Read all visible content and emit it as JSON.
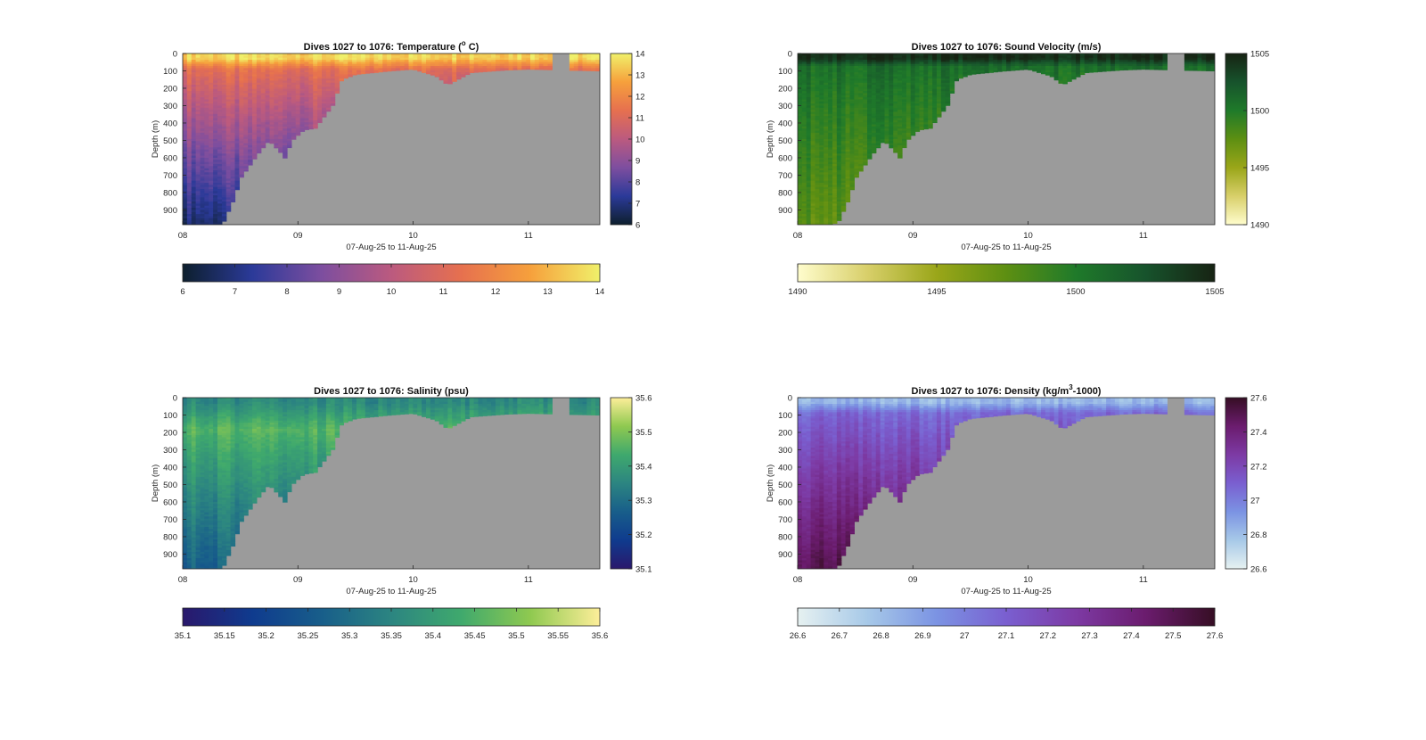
{
  "figure": {
    "background": "#ffffff"
  },
  "chart_data": [
    {
      "type": "heatmap",
      "title": "Dives 1027 to 1076: Temperature (°C)",
      "title_parts": [
        "Dives 1027 to 1076: Temperature (",
        "o",
        " C)"
      ],
      "xlabel": "07-Aug-25 to 11-Aug-25",
      "ylabel": "Depth (m)",
      "xlim": [
        8.0,
        11.62
      ],
      "ylim": [
        0,
        985
      ],
      "x_ticks": [
        8,
        9,
        10,
        11
      ],
      "x_tick_labels": [
        "08",
        "09",
        "10",
        "11"
      ],
      "y_ticks": [
        0,
        100,
        200,
        300,
        400,
        500,
        600,
        700,
        800,
        900
      ],
      "y_tick_labels": [
        "0",
        "100",
        "200",
        "300",
        "400",
        "500",
        "600",
        "700",
        "800",
        "900"
      ],
      "colormap": "thermal",
      "colormap_stops": [
        "#0d1f2d",
        "#2b3a99",
        "#7d4e9f",
        "#bb5a7f",
        "#e6704f",
        "#f6a03c",
        "#f0f06a"
      ],
      "clim": [
        6,
        14
      ],
      "side_colorbar_ticks": [
        "6",
        "7",
        "8",
        "9",
        "10",
        "11",
        "12",
        "13",
        "14"
      ],
      "bottom_colorbar_ticks": [
        "6",
        "7",
        "8",
        "9",
        "10",
        "11",
        "12",
        "13",
        "14"
      ],
      "surface_value": 13.6,
      "mixed_layer_value": 11.3,
      "mixed_layer_depth": 85,
      "deep_value": 6.8,
      "max_depth_by_day": [
        [
          8.0,
          985
        ],
        [
          8.35,
          985
        ],
        [
          8.36,
          960
        ],
        [
          8.45,
          830
        ],
        [
          8.5,
          720
        ],
        [
          8.65,
          580
        ],
        [
          8.75,
          500
        ],
        [
          8.85,
          570
        ],
        [
          8.88,
          610
        ],
        [
          8.95,
          500
        ],
        [
          9.05,
          440
        ],
        [
          9.15,
          430
        ],
        [
          9.3,
          300
        ],
        [
          9.38,
          150
        ],
        [
          9.5,
          120
        ],
        [
          9.8,
          100
        ],
        [
          10.0,
          90
        ],
        [
          10.2,
          130
        ],
        [
          10.3,
          180
        ],
        [
          10.5,
          110
        ],
        [
          10.8,
          95
        ],
        [
          11.0,
          90
        ],
        [
          11.62,
          100
        ]
      ],
      "gaps": [
        [
          11.2,
          11.35
        ]
      ]
    },
    {
      "type": "heatmap",
      "title": "Dives 1027 to 1076: Sound Velocity (m/s)",
      "xlabel": "07-Aug-25 to 11-Aug-25",
      "ylabel": "Depth (m)",
      "xlim": [
        8.0,
        11.62
      ],
      "ylim": [
        0,
        985
      ],
      "x_ticks": [
        8,
        9,
        10,
        11
      ],
      "x_tick_labels": [
        "08",
        "09",
        "10",
        "11"
      ],
      "y_ticks": [
        0,
        100,
        200,
        300,
        400,
        500,
        600,
        700,
        800,
        900
      ],
      "y_tick_labels": [
        "0",
        "100",
        "200",
        "300",
        "400",
        "500",
        "600",
        "700",
        "800",
        "900"
      ],
      "colormap": "speed",
      "colormap_stops": [
        "#fffdcd",
        "#d8cf6a",
        "#9aa619",
        "#5d8f12",
        "#1f7a2a",
        "#17532c",
        "#172313"
      ],
      "clim": [
        1490,
        1505
      ],
      "side_colorbar_ticks": [
        "1490",
        "1495",
        "1500",
        "1505"
      ],
      "bottom_colorbar_ticks": [
        "1490",
        "1495",
        "1500",
        "1505"
      ],
      "surface_value": 1504.5,
      "mixed_layer_value": 1500.8,
      "mixed_layer_depth": 70,
      "deep_value": 1497.5,
      "max_depth_by_day": [
        [
          8.0,
          985
        ],
        [
          8.3,
          985
        ],
        [
          8.36,
          960
        ],
        [
          8.45,
          830
        ],
        [
          8.5,
          720
        ],
        [
          8.65,
          580
        ],
        [
          8.75,
          500
        ],
        [
          8.85,
          570
        ],
        [
          8.88,
          610
        ],
        [
          8.95,
          500
        ],
        [
          9.05,
          440
        ],
        [
          9.15,
          430
        ],
        [
          9.3,
          300
        ],
        [
          9.38,
          150
        ],
        [
          9.5,
          120
        ],
        [
          9.8,
          100
        ],
        [
          10.0,
          90
        ],
        [
          10.2,
          130
        ],
        [
          10.3,
          180
        ],
        [
          10.5,
          110
        ],
        [
          10.8,
          95
        ],
        [
          11.0,
          90
        ],
        [
          11.62,
          100
        ]
      ],
      "gaps": [
        [
          11.2,
          11.35
        ]
      ]
    },
    {
      "type": "heatmap",
      "title": "Dives 1027 to 1076: Salinity (psu)",
      "xlabel": "07-Aug-25 to 11-Aug-25",
      "ylabel": "Depth (m)",
      "xlim": [
        8.0,
        11.62
      ],
      "ylim": [
        0,
        985
      ],
      "x_ticks": [
        8,
        9,
        10,
        11
      ],
      "x_tick_labels": [
        "08",
        "09",
        "10",
        "11"
      ],
      "y_ticks": [
        0,
        100,
        200,
        300,
        400,
        500,
        600,
        700,
        800,
        900
      ],
      "y_tick_labels": [
        "0",
        "100",
        "200",
        "300",
        "400",
        "500",
        "600",
        "700",
        "800",
        "900"
      ],
      "colormap": "haline",
      "colormap_stops": [
        "#2a186c",
        "#0f3b8e",
        "#185e8a",
        "#2c8581",
        "#3fa96d",
        "#8fc950",
        "#fdee99"
      ],
      "clim": [
        35.1,
        35.6
      ],
      "side_colorbar_ticks": [
        "35.1",
        "35.2",
        "35.3",
        "35.4",
        "35.5",
        "35.6"
      ],
      "bottom_colorbar_ticks": [
        "35.1",
        "35.15",
        "35.2",
        "35.25",
        "35.3",
        "35.35",
        "35.4",
        "35.45",
        "35.5",
        "35.55",
        "35.6"
      ],
      "surface_value": 35.36,
      "mixed_layer_value": 35.46,
      "mixed_layer_depth": 180,
      "deep_value": 35.27,
      "max_depth_by_day": [
        [
          8.0,
          985
        ],
        [
          8.35,
          985
        ],
        [
          8.36,
          960
        ],
        [
          8.45,
          830
        ],
        [
          8.5,
          720
        ],
        [
          8.65,
          580
        ],
        [
          8.75,
          500
        ],
        [
          8.85,
          570
        ],
        [
          8.88,
          610
        ],
        [
          8.95,
          500
        ],
        [
          9.05,
          440
        ],
        [
          9.15,
          430
        ],
        [
          9.3,
          300
        ],
        [
          9.38,
          150
        ],
        [
          9.5,
          120
        ],
        [
          9.8,
          100
        ],
        [
          10.0,
          90
        ],
        [
          10.2,
          130
        ],
        [
          10.3,
          180
        ],
        [
          10.5,
          110
        ],
        [
          10.8,
          95
        ],
        [
          11.0,
          90
        ],
        [
          11.62,
          100
        ]
      ],
      "gaps": [
        [
          11.2,
          11.35
        ]
      ]
    },
    {
      "type": "heatmap",
      "title": "Dives 1027 to 1076: Density (kg/m³-1000)",
      "title_parts": [
        "Dives 1027 to 1076: Density (kg/m",
        "3",
        "-1000)"
      ],
      "xlabel": "07-Aug-25 to 11-Aug-25",
      "ylabel": "Depth (m)",
      "xlim": [
        8.0,
        11.62
      ],
      "ylim": [
        0,
        985
      ],
      "x_ticks": [
        8,
        9,
        10,
        11
      ],
      "x_tick_labels": [
        "08",
        "09",
        "10",
        "11"
      ],
      "y_ticks": [
        0,
        100,
        200,
        300,
        400,
        500,
        600,
        700,
        800,
        900
      ],
      "y_tick_labels": [
        "0",
        "100",
        "200",
        "300",
        "400",
        "500",
        "600",
        "700",
        "800",
        "900"
      ],
      "colormap": "dense",
      "colormap_stops": [
        "#e6f1f1",
        "#a7c9e8",
        "#7b93e3",
        "#7a5fd0",
        "#7d3aa4",
        "#6b1c6e",
        "#360e24"
      ],
      "clim": [
        26.6,
        27.6
      ],
      "side_colorbar_ticks": [
        "26.6",
        "26.8",
        "27",
        "27.2",
        "27.4",
        "27.6"
      ],
      "bottom_colorbar_ticks": [
        "26.6",
        "26.7",
        "26.8",
        "26.9",
        "27",
        "27.1",
        "27.2",
        "27.3",
        "27.4",
        "27.5",
        "27.6"
      ],
      "surface_value": 26.82,
      "mixed_layer_value": 27.06,
      "mixed_layer_depth": 80,
      "deep_value": 27.5,
      "max_depth_by_day": [
        [
          8.0,
          985
        ],
        [
          8.35,
          985
        ],
        [
          8.36,
          960
        ],
        [
          8.45,
          830
        ],
        [
          8.5,
          720
        ],
        [
          8.65,
          580
        ],
        [
          8.75,
          500
        ],
        [
          8.85,
          570
        ],
        [
          8.88,
          610
        ],
        [
          8.95,
          500
        ],
        [
          9.05,
          440
        ],
        [
          9.15,
          430
        ],
        [
          9.3,
          300
        ],
        [
          9.38,
          150
        ],
        [
          9.5,
          120
        ],
        [
          9.8,
          100
        ],
        [
          10.0,
          90
        ],
        [
          10.2,
          130
        ],
        [
          10.3,
          180
        ],
        [
          10.5,
          110
        ],
        [
          10.8,
          95
        ],
        [
          11.0,
          90
        ],
        [
          11.62,
          100
        ]
      ],
      "gaps": [
        [
          11.2,
          11.35
        ]
      ]
    }
  ]
}
